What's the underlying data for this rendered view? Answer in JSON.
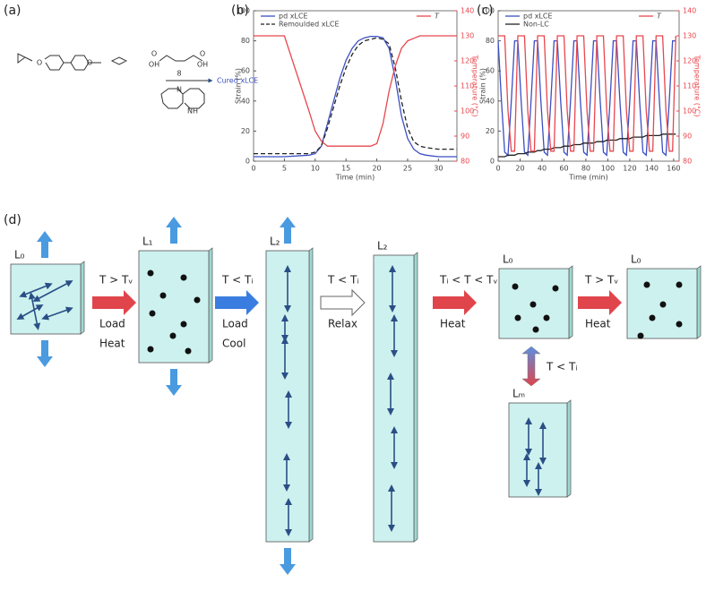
{
  "panel_labels": [
    "(a)",
    "(b)",
    "(c)",
    "(d)"
  ],
  "chemistry": {
    "atoms": [
      "O",
      "O",
      "OH",
      "OH",
      "O",
      "O",
      "8",
      "N",
      "N",
      "H"
    ],
    "product": "Cured xLCE"
  },
  "chart_data": [
    {
      "type": "line",
      "xlabel": "Time (min)",
      "ylabel": "Strain (%)",
      "y2label": "Temperature (°C)",
      "x": [
        0,
        5,
        9,
        10,
        11,
        12,
        13,
        14,
        15,
        16,
        17,
        18,
        19,
        20,
        21,
        22,
        23,
        24,
        25,
        26,
        27,
        28,
        30,
        33
      ],
      "xlim": [
        0,
        33
      ],
      "xticks": [
        0,
        5,
        10,
        15,
        20,
        25,
        30
      ],
      "ylim": [
        0,
        100
      ],
      "yticks": [
        0,
        20,
        40,
        60,
        80,
        100
      ],
      "y2lim": [
        80,
        140
      ],
      "y2ticks": [
        80,
        90,
        100,
        110,
        120,
        130,
        140
      ],
      "legend": "upper left",
      "series": [
        {
          "name": "pd xLCE",
          "color": "#3b4fc4",
          "values": [
            3,
            3,
            4,
            5,
            10,
            25,
            40,
            55,
            67,
            75,
            80,
            82,
            83,
            83,
            82,
            75,
            55,
            30,
            15,
            8,
            5,
            4,
            3,
            3
          ]
        },
        {
          "name": "Remoulded xLCE",
          "color": "#222222",
          "dashed": true,
          "values": [
            5,
            5,
            5,
            6,
            10,
            22,
            36,
            50,
            62,
            71,
            77,
            80,
            81,
            82,
            81,
            78,
            62,
            40,
            22,
            13,
            10,
            9,
            8,
            8
          ]
        },
        {
          "name": "T",
          "color": "#e8474e",
          "axis": "y2",
          "values": [
            130,
            130,
            100,
            92,
            88,
            86,
            86,
            86,
            86,
            86,
            86,
            86,
            86,
            87,
            95,
            108,
            118,
            125,
            128,
            129,
            130,
            130,
            130,
            130
          ]
        }
      ]
    },
    {
      "type": "line",
      "xlabel": "Time (min)",
      "ylabel": "Strain (%)",
      "y2label": "Temperature (°C)",
      "x": [
        0,
        3,
        6,
        9,
        12,
        15,
        18,
        21,
        24,
        27,
        30,
        33,
        36,
        39,
        42,
        45,
        48,
        51,
        54,
        57,
        60,
        63,
        66,
        69,
        72,
        75,
        78,
        81,
        84,
        87,
        90,
        93,
        96,
        99,
        102,
        105,
        108,
        111,
        114,
        117,
        120,
        123,
        126,
        129,
        132,
        135,
        138,
        141,
        144,
        147,
        150,
        153,
        156,
        159,
        162
      ],
      "xlim": [
        0,
        165
      ],
      "xticks": [
        0,
        20,
        40,
        60,
        80,
        100,
        120,
        140,
        160
      ],
      "ylim": [
        0,
        100
      ],
      "yticks": [
        0,
        20,
        40,
        60,
        80,
        100
      ],
      "y2lim": [
        80,
        140
      ],
      "y2ticks": [
        80,
        90,
        100,
        110,
        120,
        130,
        140
      ],
      "legend": "upper left",
      "series": [
        {
          "name": "pd xLCE",
          "color": "#3b4fc4",
          "values": [
            80,
            40,
            6,
            4,
            40,
            80,
            80,
            40,
            6,
            4,
            40,
            80,
            80,
            40,
            6,
            4,
            40,
            80,
            80,
            40,
            6,
            4,
            40,
            80,
            80,
            40,
            6,
            4,
            40,
            80,
            80,
            40,
            6,
            4,
            40,
            80,
            80,
            40,
            6,
            4,
            40,
            80,
            80,
            40,
            6,
            4,
            40,
            80,
            80,
            40,
            6,
            4,
            40,
            80,
            80
          ]
        },
        {
          "name": "Non-LC",
          "color": "#222222",
          "values": [
            3,
            3,
            3,
            4,
            4,
            4,
            5,
            5,
            5,
            6,
            6,
            6,
            7,
            7,
            8,
            8,
            8,
            9,
            9,
            9,
            10,
            10,
            10,
            11,
            11,
            11,
            12,
            12,
            12,
            12,
            13,
            13,
            13,
            14,
            14,
            14,
            14,
            15,
            15,
            15,
            15,
            16,
            16,
            16,
            16,
            17,
            17,
            17,
            17,
            17,
            18,
            18,
            18,
            18,
            18
          ]
        },
        {
          "name": "T",
          "color": "#e8474e",
          "axis": "y2",
          "values": [
            130,
            130,
            130,
            100,
            84,
            84,
            130,
            130,
            130,
            100,
            84,
            84,
            130,
            130,
            130,
            100,
            84,
            84,
            130,
            130,
            130,
            100,
            84,
            84,
            130,
            130,
            130,
            100,
            84,
            84,
            130,
            130,
            130,
            100,
            84,
            84,
            130,
            130,
            130,
            100,
            84,
            84,
            130,
            130,
            130,
            100,
            84,
            84,
            130,
            130,
            130,
            100,
            84,
            84,
            130
          ]
        }
      ]
    }
  ],
  "diagram": {
    "states": [
      "L₀",
      "L₁",
      "L₂",
      "L₂",
      "L₀",
      "L₀",
      "Lₘ"
    ],
    "steps": [
      {
        "condition": "T > Tᵥ",
        "actions": [
          "Load",
          "Heat"
        ]
      },
      {
        "condition": "T < Tᵢ",
        "actions": [
          "Load",
          "Cool"
        ]
      },
      {
        "condition": "T < Tᵢ",
        "actions": [
          "Relax"
        ]
      },
      {
        "condition": "Tᵢ < T < Tᵥ",
        "actions": [
          "Heat"
        ]
      },
      {
        "condition": "T > Tᵥ",
        "actions": [
          "Heat"
        ]
      },
      {
        "condition": "T < Tᵢ",
        "actions": []
      }
    ]
  }
}
